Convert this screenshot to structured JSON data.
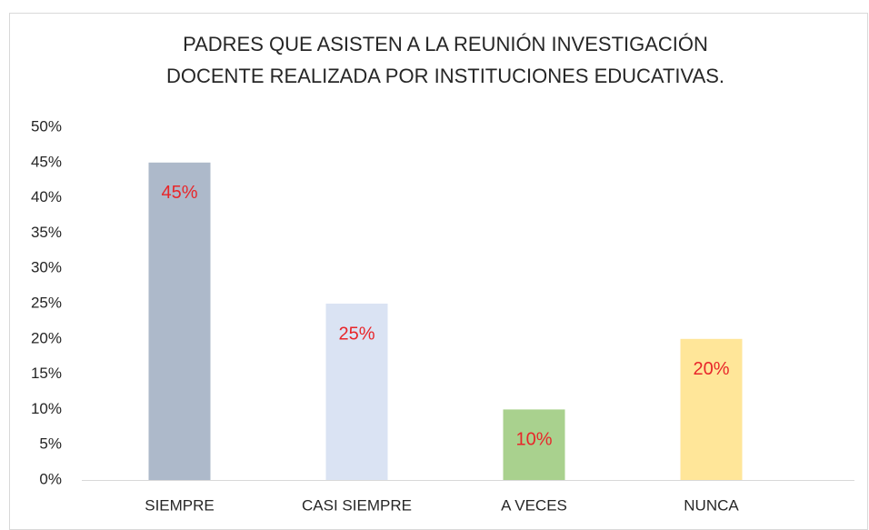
{
  "chart_data": {
    "type": "bar",
    "title": [
      "PADRES QUE ASISTEN A LA REUNIÓN INVESTIGACIÓN",
      "DOCENTE REALIZADA POR INSTITUCIONES EDUCATIVAS."
    ],
    "categories": [
      "SIEMPRE",
      "CASI SIEMPRE",
      "A VECES",
      "NUNCA"
    ],
    "values": [
      45,
      25,
      10,
      20
    ],
    "value_labels": [
      "45%",
      "25%",
      "10%",
      "20%"
    ],
    "colors": [
      "#adb9ca",
      "#dae3f3",
      "#a9d18e",
      "#ffe699"
    ],
    "value_label_color": "#e8262a",
    "ylim": [
      0,
      50
    ],
    "yticks": [
      {
        "value": 0,
        "label": "0%"
      },
      {
        "value": 5,
        "label": "5%"
      },
      {
        "value": 10,
        "label": "10%"
      },
      {
        "value": 15,
        "label": "15%"
      },
      {
        "value": 20,
        "label": "20%"
      },
      {
        "value": 25,
        "label": "25%"
      },
      {
        "value": 30,
        "label": "30%"
      },
      {
        "value": 35,
        "label": "35%"
      },
      {
        "value": 40,
        "label": "40%"
      },
      {
        "value": 45,
        "label": "45%"
      },
      {
        "value": 50,
        "label": "50%"
      }
    ],
    "grid": false
  }
}
